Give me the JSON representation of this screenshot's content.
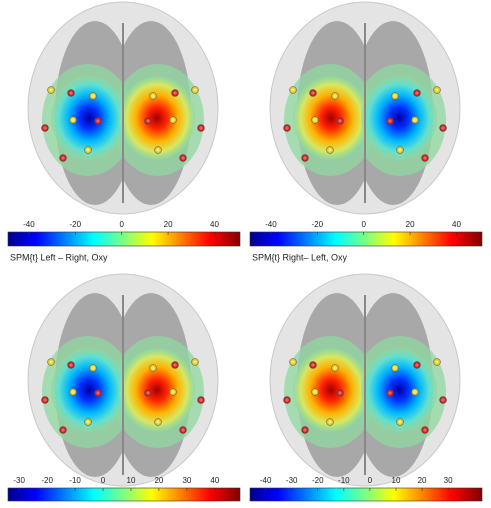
{
  "panels": [
    {
      "caption": "SPM{t} Left – Right, Oxy",
      "colorbar": {
        "clim": [
          -49,
          51
        ],
        "ticks": [
          -40,
          -20,
          0,
          20,
          40
        ]
      }
    },
    {
      "caption": "SPM{t} Right– Left, Oxy",
      "colorbar": {
        "clim": [
          -49,
          51
        ],
        "ticks": [
          -40,
          -20,
          0,
          20,
          40
        ]
      }
    },
    {
      "colorbar": {
        "clim": [
          -34,
          49
        ],
        "ticks": [
          -30,
          -20,
          -10,
          0,
          10,
          20,
          30,
          40
        ]
      }
    },
    {
      "colorbar": {
        "clim": [
          -46,
          43
        ],
        "ticks": [
          -40,
          -30,
          -20,
          -10,
          0,
          10,
          20,
          30
        ]
      }
    }
  ]
}
